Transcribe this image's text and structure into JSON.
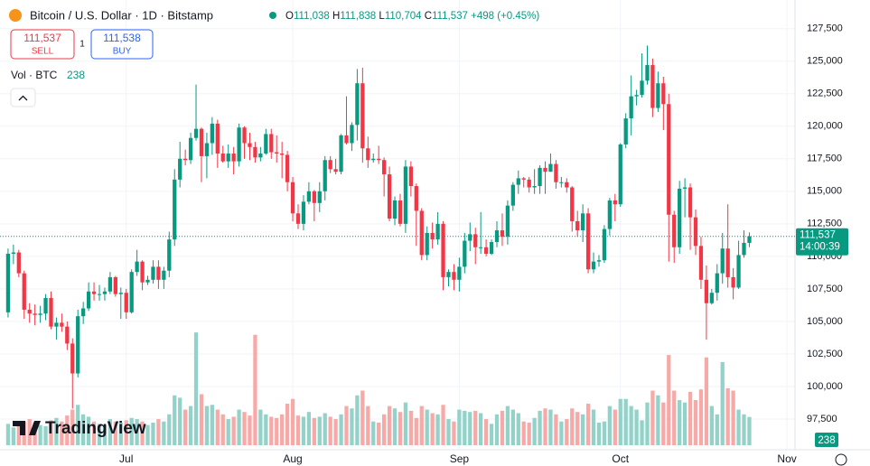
{
  "header": {
    "symbol_title": "Bitcoin / U.S. Dollar · 1D · Bitstamp",
    "legend_ohlc": [
      {
        "key": "O",
        "value": "111,038"
      },
      {
        "key": "H",
        "value": "111,838"
      },
      {
        "key": "L",
        "value": "110,704"
      },
      {
        "key": "C",
        "value": "111,537"
      }
    ],
    "change": "+498 (+0.45%)",
    "sell": {
      "price": "111,537",
      "label": "SELL"
    },
    "spread": "1",
    "buy": {
      "price": "111,538",
      "label": "BUY"
    },
    "volume_label": "Vol · BTC",
    "volume_value": "238",
    "brand": "TradingView"
  },
  "chart_data": {
    "type": "candlestick",
    "categories": [
      null,
      null,
      null,
      null,
      null,
      null,
      null,
      null,
      null,
      null,
      null,
      null,
      null,
      null,
      null,
      null,
      null,
      null,
      null,
      null,
      null,
      null,
      null,
      null,
      null,
      null,
      null,
      null,
      null,
      null,
      null,
      null,
      null,
      null,
      null,
      null,
      null,
      null,
      null,
      null,
      null,
      null,
      null,
      null,
      null,
      null,
      null,
      null,
      null,
      null,
      null,
      null,
      null,
      null,
      null,
      null,
      null,
      null,
      null,
      null,
      null,
      null,
      null,
      null,
      null,
      null,
      null,
      null,
      null,
      null,
      null,
      null,
      null,
      null,
      null,
      null,
      null,
      null,
      null,
      null,
      null,
      null,
      null,
      null,
      null,
      null,
      null,
      null,
      null,
      null,
      null,
      null,
      null,
      null,
      null,
      null,
      null,
      null,
      null,
      null,
      null,
      null,
      null,
      null,
      null,
      null,
      null,
      null,
      null,
      null,
      null,
      null,
      null,
      null,
      null,
      null,
      null,
      null,
      null,
      null,
      null,
      null,
      null,
      null,
      null,
      null,
      null,
      null,
      null,
      null,
      null,
      null,
      null,
      null,
      null,
      null,
      null,
      null,
      null
    ],
    "open": [
      105700,
      110200,
      110300,
      108700,
      105900,
      105600,
      105500,
      105600,
      106800,
      104600,
      104900,
      104600,
      103300,
      101000,
      105400,
      106000,
      107300,
      107100,
      107100,
      107300,
      108400,
      107100,
      107200,
      105700,
      108800,
      109600,
      108000,
      108200,
      109200,
      108200,
      108900,
      111300,
      115900,
      117500,
      117400,
      119100,
      119800,
      117700,
      118700,
      120200,
      117900,
      117300,
      117900,
      117300,
      119900,
      118700,
      118400,
      117600,
      117900,
      119400,
      118000,
      117900,
      117800,
      115700,
      113300,
      112500,
      114200,
      115000,
      114100,
      115000,
      117400,
      116700,
      116500,
      119300,
      118700,
      120100,
      123300,
      118300,
      117400,
      117500,
      117400,
      116300,
      112900,
      114300,
      112500,
      116900,
      115400,
      113500,
      110100,
      111800,
      111300,
      112500,
      108400,
      108800,
      108200,
      109200,
      111200,
      111700,
      110700,
      110700,
      110200,
      111100,
      112000,
      111500,
      113900,
      115500,
      116000,
      115900,
      115300,
      115400,
      116800,
      116500,
      117100,
      115700,
      115700,
      115300,
      112700,
      112000,
      113300,
      109000,
      109600,
      109700,
      112100,
      114300,
      114000,
      118600,
      120600,
      122300,
      122400,
      123500,
      124700,
      121400,
      123300,
      121700,
      113200,
      110700,
      115200,
      115300,
      113000,
      110800,
      108200,
      106400,
      107200,
      108700,
      110600,
      108400,
      107600,
      110100,
      111038
    ],
    "high": [
      110600,
      110900,
      110500,
      108900,
      106400,
      106300,
      106200,
      107100,
      107300,
      105300,
      105600,
      105000,
      103700,
      105900,
      106500,
      108000,
      108000,
      107800,
      107600,
      108800,
      108500,
      107600,
      107500,
      109000,
      110500,
      109700,
      108500,
      109700,
      109700,
      109200,
      111900,
      116700,
      118800,
      118200,
      119500,
      123200,
      119900,
      119500,
      120700,
      120500,
      118500,
      118600,
      118400,
      120200,
      120000,
      119500,
      118800,
      118400,
      119800,
      119800,
      119300,
      118800,
      118100,
      116100,
      114000,
      114700,
      115700,
      115100,
      115700,
      117700,
      117700,
      117500,
      119400,
      122300,
      120300,
      124400,
      124500,
      119200,
      117900,
      118500,
      117600,
      116900,
      114600,
      114800,
      117400,
      117300,
      115600,
      113700,
      112300,
      112600,
      113400,
      112700,
      109000,
      109400,
      109900,
      111800,
      112600,
      112200,
      113400,
      111300,
      111300,
      112700,
      113300,
      114300,
      115700,
      116600,
      116100,
      116100,
      116700,
      117000,
      117300,
      117900,
      117400,
      116100,
      116000,
      115400,
      113500,
      114000,
      113700,
      110300,
      110100,
      112400,
      114500,
      114800,
      118700,
      121000,
      123900,
      122800,
      125600,
      126200,
      125200,
      124200,
      123800,
      122500,
      113500,
      115800,
      116000,
      115600,
      113600,
      111500,
      109300,
      107500,
      109400,
      111800,
      114000,
      109100,
      111200,
      112000,
      111838
    ],
    "low": [
      105300,
      109400,
      108400,
      105200,
      104900,
      104700,
      104900,
      105100,
      104400,
      103600,
      104200,
      102800,
      98300,
      100700,
      104800,
      105800,
      106600,
      106600,
      106600,
      107100,
      106900,
      105200,
      105200,
      105600,
      108500,
      107400,
      107800,
      107900,
      107500,
      107500,
      108400,
      110800,
      115300,
      117000,
      117100,
      118900,
      115700,
      116000,
      117800,
      116800,
      117200,
      116800,
      116300,
      116900,
      117500,
      117400,
      117200,
      117300,
      117800,
      117500,
      117200,
      116000,
      115000,
      112700,
      112100,
      112000,
      114000,
      112700,
      113400,
      114300,
      116400,
      116300,
      116300,
      118600,
      118100,
      118900,
      117200,
      116800,
      117200,
      117100,
      114600,
      112700,
      112400,
      112300,
      111800,
      114600,
      110800,
      109700,
      109700,
      110600,
      110900,
      107400,
      107700,
      107400,
      107300,
      108700,
      110400,
      109400,
      110200,
      110000,
      110100,
      110700,
      110800,
      110900,
      113500,
      114800,
      115300,
      114900,
      114800,
      114800,
      114800,
      116500,
      115200,
      115300,
      114900,
      111900,
      111500,
      111100,
      108700,
      108700,
      109200,
      109500,
      111600,
      112700,
      113800,
      118300,
      119300,
      121600,
      122200,
      123200,
      120700,
      121100,
      119700,
      109600,
      109500,
      110200,
      113000,
      110500,
      110100,
      107500,
      103600,
      106300,
      106600,
      107900,
      107600,
      106700,
      107500,
      109900,
      110704
    ],
    "close": [
      110200,
      110300,
      108700,
      105900,
      105600,
      105500,
      105600,
      106800,
      104600,
      104900,
      104600,
      103300,
      101000,
      105400,
      106000,
      107300,
      107100,
      107100,
      107300,
      108400,
      107100,
      107200,
      105700,
      108800,
      109600,
      108000,
      108200,
      109200,
      108200,
      108900,
      111300,
      115900,
      117500,
      117400,
      119100,
      119800,
      117700,
      118700,
      120200,
      117900,
      117300,
      117900,
      117300,
      119900,
      118700,
      118400,
      117600,
      117900,
      119400,
      118000,
      117900,
      117800,
      115700,
      113300,
      112500,
      114200,
      115000,
      114100,
      115000,
      117400,
      116700,
      116500,
      119300,
      118700,
      120100,
      123300,
      118300,
      117400,
      117500,
      117400,
      116300,
      112900,
      114300,
      112500,
      116900,
      115400,
      113500,
      110100,
      111800,
      111300,
      112500,
      108400,
      108800,
      108200,
      109200,
      111200,
      111700,
      110700,
      110700,
      110200,
      111100,
      112000,
      111500,
      113900,
      115500,
      116000,
      115900,
      115300,
      115400,
      116800,
      116500,
      117100,
      115700,
      115700,
      115300,
      112700,
      112000,
      113300,
      109000,
      109600,
      109700,
      112100,
      114300,
      114000,
      118600,
      120600,
      122300,
      122400,
      123500,
      124700,
      121400,
      123300,
      121700,
      113200,
      110700,
      115200,
      115300,
      113000,
      110800,
      108200,
      106400,
      107200,
      108700,
      110600,
      108400,
      107600,
      110100,
      111038,
      111537
    ],
    "volume": [
      180,
      150,
      170,
      200,
      220,
      190,
      170,
      160,
      210,
      230,
      200,
      250,
      300,
      340,
      260,
      240,
      200,
      180,
      170,
      220,
      200,
      190,
      210,
      230,
      220,
      200,
      170,
      190,
      220,
      200,
      260,
      420,
      400,
      300,
      330,
      950,
      430,
      330,
      340,
      300,
      260,
      220,
      240,
      300,
      280,
      250,
      930,
      300,
      260,
      240,
      230,
      260,
      350,
      390,
      250,
      240,
      280,
      230,
      240,
      270,
      240,
      220,
      260,
      330,
      310,
      420,
      460,
      330,
      200,
      190,
      260,
      330,
      310,
      280,
      360,
      290,
      230,
      330,
      300,
      270,
      260,
      340,
      220,
      200,
      300,
      290,
      280,
      290,
      270,
      220,
      180,
      260,
      290,
      330,
      300,
      270,
      200,
      190,
      230,
      290,
      310,
      300,
      260,
      200,
      220,
      310,
      280,
      260,
      350,
      300,
      190,
      200,
      330,
      300,
      390,
      390,
      330,
      300,
      210,
      360,
      460,
      420,
      360,
      760,
      460,
      380,
      360,
      450,
      380,
      470,
      740,
      330,
      260,
      700,
      480,
      460,
      300,
      260,
      238
    ],
    "up_color": "#089981",
    "down_color": "#f23645",
    "up_volume_color": "#92d2c8",
    "down_volume_color": "#f7a9a7",
    "ylim": [
      95000,
      129700
    ],
    "vlim": [
      0,
      3750
    ],
    "xlim": [
      -1.5,
      146.5
    ],
    "yticks": [
      {
        "value": 97500,
        "label": "97,500"
      },
      {
        "value": 100000,
        "label": "100,000"
      },
      {
        "value": 102500,
        "label": "102,500"
      },
      {
        "value": 105000,
        "label": "105,000"
      },
      {
        "value": 107500,
        "label": "107,500"
      },
      {
        "value": 110000,
        "label": "110,000"
      },
      {
        "value": 112500,
        "label": "112,500"
      },
      {
        "value": 115000,
        "label": "115,000"
      },
      {
        "value": 117500,
        "label": "117,500"
      },
      {
        "value": 120000,
        "label": "120,000"
      },
      {
        "value": 122500,
        "label": "122,500"
      },
      {
        "value": 125000,
        "label": "125,000"
      },
      {
        "value": 127500,
        "label": "127,500"
      }
    ],
    "xticks": [
      {
        "value": 22,
        "label": "Jul"
      },
      {
        "value": 53,
        "label": "Aug"
      },
      {
        "value": 84,
        "label": "Sep"
      },
      {
        "value": 114,
        "label": "Oct"
      },
      {
        "value": 145,
        "label": "Nov"
      }
    ],
    "last_price_label": "111,537",
    "countdown": "14:00:39",
    "volume_axis_label": "238",
    "grid": true
  }
}
